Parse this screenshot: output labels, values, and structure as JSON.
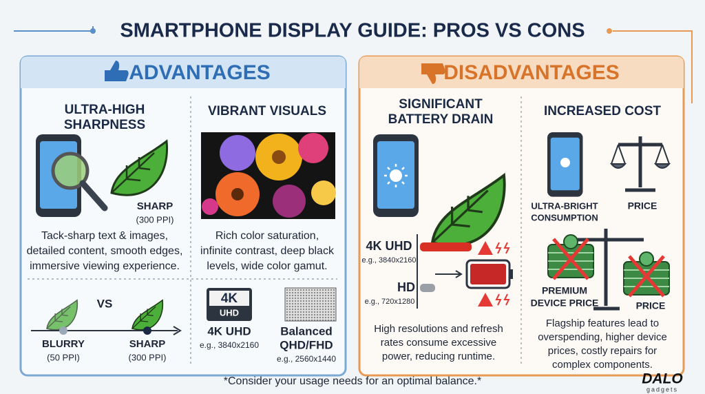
{
  "title": "SMARTPHONE DISPLAY GUIDE: PROS VS CONS",
  "advantages": {
    "heading": "ADVANTAGES",
    "sharpness": {
      "title": [
        "ULTRA-HIGH",
        "SHARPNESS"
      ],
      "label": "SHARP",
      "ppi": "(300 PPI)",
      "description": [
        "Tack-sharp text & images,",
        "detailed content, smooth edges,",
        "immersive viewing experience."
      ]
    },
    "comparison": {
      "vs": "VS",
      "left": {
        "label": "BLURRY",
        "ppi": "(50 PPI)"
      },
      "right": {
        "label": "SHARP",
        "ppi": "(300 PPI)"
      }
    },
    "vibrant": {
      "title": "VIBRANT VISUALS",
      "description": [
        "Rich color saturation,",
        "infinite contrast, deep black",
        "levels, wide color gamut."
      ]
    },
    "resolutions": {
      "badge": [
        "4K",
        "UHD"
      ],
      "uhd": {
        "label": "4K UHD",
        "example": "e.g., 3840x2160"
      },
      "balanced": {
        "label": [
          "Balanced",
          "QHD/FHD"
        ],
        "example": "e.g., 2560x1440"
      }
    }
  },
  "disadvantages": {
    "heading": "DISADVANTAGES",
    "battery": {
      "title": [
        "SIGNIFICANT",
        "BATTERY DRAIN"
      ],
      "uhd": {
        "label": "4K UHD",
        "example": "e.g., 3840x2160"
      },
      "hd": {
        "label": "HD",
        "example": "e.g., 720x1280"
      },
      "description": [
        "High resolutions and refresh",
        "rates consume excessive",
        "power, reducing runtime."
      ]
    },
    "cost": {
      "title": "INCREASED COST",
      "consumption": [
        "ULTRA-BRIGHT",
        "CONSUMPTION"
      ],
      "price_top": "PRICE",
      "premium": [
        "PREMIUM",
        "DEVICE PRICE"
      ],
      "price_bottom": "PRICE",
      "description": [
        "Flagship features lead to",
        "overspending, higher device",
        "prices, costly repairs for",
        "complex components."
      ]
    }
  },
  "footer": "*Consider your usage needs for an optimal balance.*",
  "logo": {
    "name": "DALO",
    "tagline": "gadgets"
  }
}
